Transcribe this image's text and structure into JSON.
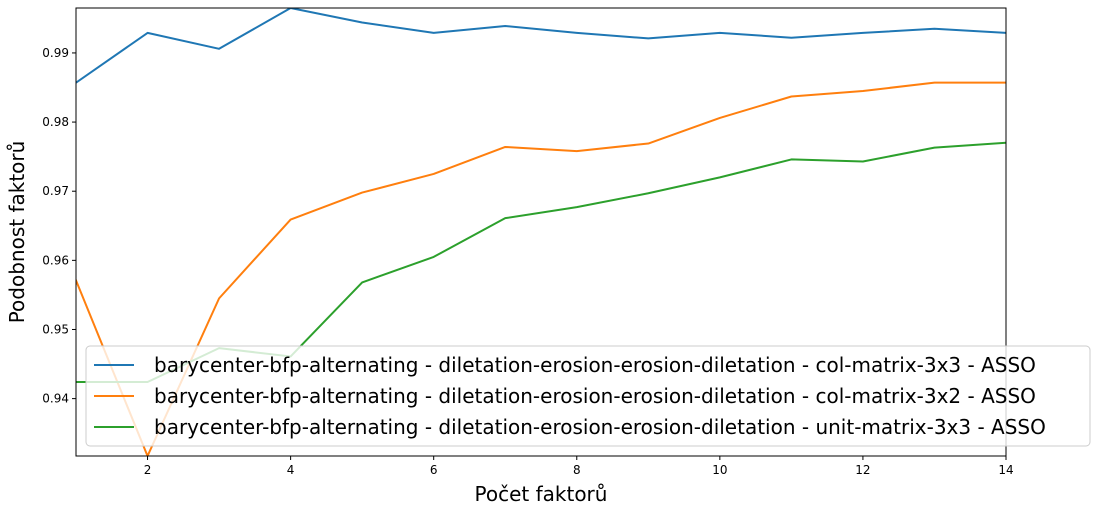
{
  "chart_data": {
    "type": "line",
    "title": "",
    "xlabel": "Počet faktorů",
    "ylabel": "Podobnost faktorů",
    "xlim": [
      1,
      14
    ],
    "ylim": [
      0.9317,
      0.9965
    ],
    "xticks": [
      2,
      4,
      6,
      8,
      10,
      12,
      14
    ],
    "yticks": [
      0.94,
      0.95,
      0.96,
      0.97,
      0.98,
      0.99
    ],
    "grid": false,
    "legend_position": "lower-right",
    "x": [
      1,
      2,
      3,
      4,
      5,
      6,
      7,
      8,
      9,
      10,
      11,
      12,
      13,
      14
    ],
    "series": [
      {
        "name": "barycenter-bfp-alternating - diletation-erosion-erosion-diletation - col-matrix-3x3 - ASSO",
        "color": "#1f77b4",
        "values": [
          0.9857,
          0.9929,
          0.9906,
          0.9965,
          0.9944,
          0.9929,
          0.9939,
          0.9929,
          0.9921,
          0.9929,
          0.9922,
          0.9929,
          0.9935,
          0.9929
        ]
      },
      {
        "name": "barycenter-bfp-alternating - diletation-erosion-erosion-diletation - col-matrix-3x2 - ASSO",
        "color": "#ff7f0e",
        "values": [
          0.9571,
          0.9317,
          0.9545,
          0.9659,
          0.9698,
          0.9725,
          0.9764,
          0.9758,
          0.9769,
          0.9806,
          0.9837,
          0.9845,
          0.9857,
          0.9857
        ]
      },
      {
        "name": "barycenter-bfp-alternating - diletation-erosion-erosion-diletation - unit-matrix-3x3 - ASSO",
        "color": "#2ca02c",
        "values": [
          0.9424,
          0.9424,
          0.9473,
          0.9461,
          0.9568,
          0.9605,
          0.9661,
          0.9677,
          0.9697,
          0.972,
          0.9746,
          0.9743,
          0.9763,
          0.977
        ]
      }
    ]
  }
}
